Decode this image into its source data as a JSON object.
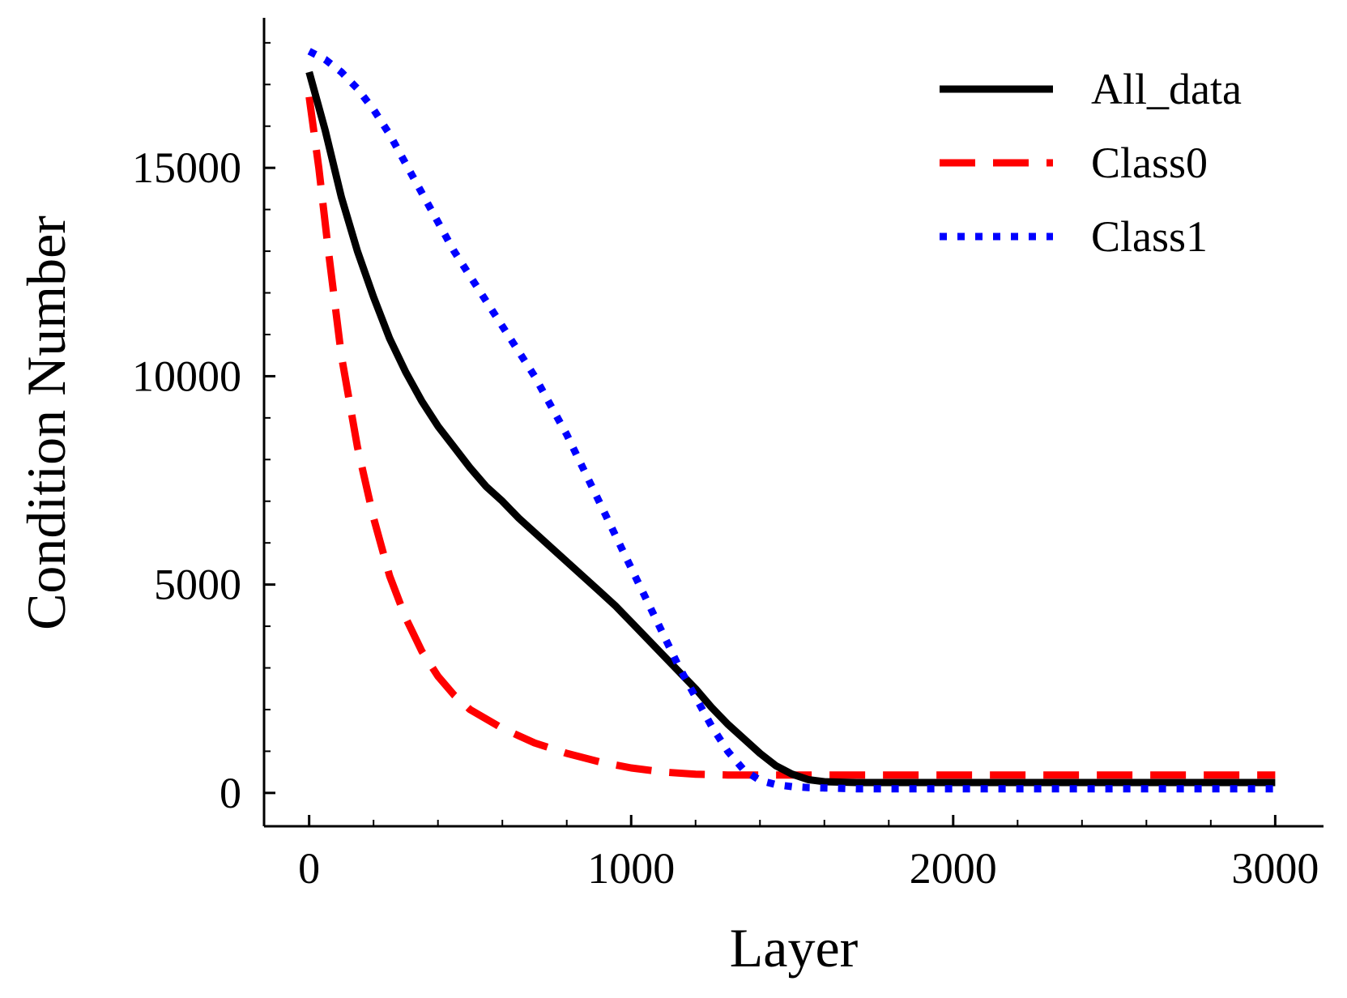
{
  "chart_data": {
    "type": "line",
    "title": "",
    "xlabel": "Layer",
    "ylabel": "Condition Number",
    "xlim": [
      -140,
      3150
    ],
    "ylim": [
      -800,
      18600
    ],
    "xticks": [
      0,
      1000,
      2000,
      3000
    ],
    "xticks_minor": [
      200,
      400,
      600,
      800,
      1200,
      1400,
      1600,
      1800,
      2200,
      2400,
      2600,
      2800
    ],
    "yticks": [
      0,
      5000,
      10000,
      15000
    ],
    "yticks_minor": [
      1000,
      2000,
      3000,
      4000,
      6000,
      7000,
      8000,
      9000,
      11000,
      12000,
      13000,
      14000,
      16000,
      17000,
      18000
    ],
    "grid": false,
    "legend_position": "top-right",
    "series": [
      {
        "name": "All_data",
        "color": "#000000",
        "style": "solid",
        "x": [
          0,
          50,
          100,
          150,
          200,
          250,
          300,
          350,
          400,
          450,
          500,
          550,
          600,
          650,
          700,
          750,
          800,
          850,
          900,
          950,
          1000,
          1050,
          1100,
          1150,
          1200,
          1250,
          1300,
          1350,
          1400,
          1450,
          1500,
          1550,
          1600,
          1650,
          1700,
          1800,
          2000,
          2500,
          3000
        ],
        "y": [
          17300,
          15900,
          14300,
          13000,
          11900,
          10900,
          10100,
          9400,
          8800,
          8300,
          7800,
          7350,
          7000,
          6600,
          6250,
          5900,
          5550,
          5200,
          4850,
          4500,
          4100,
          3700,
          3300,
          2900,
          2500,
          2050,
          1650,
          1300,
          950,
          650,
          450,
          320,
          270,
          260,
          250,
          250,
          250,
          250,
          250
        ]
      },
      {
        "name": "Class0",
        "color": "#ff0000",
        "style": "dashed",
        "x": [
          0,
          30,
          60,
          100,
          150,
          200,
          250,
          300,
          350,
          400,
          450,
          500,
          600,
          700,
          800,
          900,
          1000,
          1100,
          1200,
          1300,
          1400,
          1500,
          2000,
          2500,
          3000
        ],
        "y": [
          16700,
          15000,
          13000,
          10500,
          8300,
          6600,
          5200,
          4200,
          3400,
          2800,
          2350,
          2000,
          1550,
          1200,
          950,
          750,
          600,
          500,
          450,
          430,
          430,
          430,
          430,
          430,
          430
        ]
      },
      {
        "name": "Class1",
        "color": "#0000ff",
        "style": "dotted",
        "x": [
          0,
          50,
          100,
          150,
          200,
          250,
          300,
          350,
          400,
          450,
          500,
          550,
          600,
          650,
          700,
          750,
          800,
          850,
          900,
          950,
          1000,
          1050,
          1100,
          1150,
          1200,
          1250,
          1300,
          1350,
          1400,
          1450,
          1500,
          1550,
          1600,
          1700,
          2000,
          2500,
          3000
        ],
        "y": [
          17800,
          17600,
          17300,
          16900,
          16400,
          15800,
          15100,
          14400,
          13700,
          13000,
          12400,
          11800,
          11200,
          10600,
          10000,
          9300,
          8600,
          7800,
          7000,
          6200,
          5400,
          4600,
          3800,
          3000,
          2300,
          1600,
          1000,
          550,
          300,
          200,
          150,
          130,
          120,
          100,
          100,
          100,
          100
        ]
      }
    ]
  }
}
